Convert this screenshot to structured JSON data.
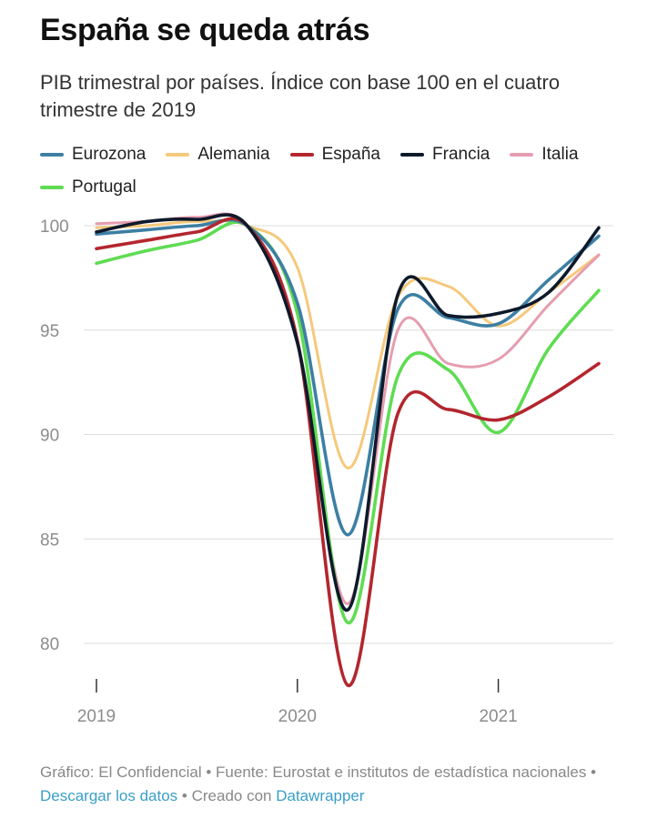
{
  "header": {
    "title": "España se queda atrás",
    "subtitle": "PIB trimestral por países. Índice con base 100 en el cuatro trimestre de 2019"
  },
  "footer": {
    "grafico": "Gráfico: El Confidencial",
    "sep1": " • ",
    "fuente": "Fuente: Eurostat e institutos de estadística nacionales",
    "sep2": " • ",
    "descargar": "Descargar los datos",
    "sep3": " • ",
    "creado": "Creado con ",
    "datawrapper": "Datawrapper"
  },
  "colors": {
    "Eurozona": "#3d7fa3",
    "Alemania": "#f5c97b",
    "España": "#b3262e",
    "Francia": "#0e1a2b",
    "Italia": "#e59db0",
    "Portugal": "#5fdc52",
    "grid": "#dcdcdc",
    "axis_text": "#8c8c8c"
  },
  "chart_data": {
    "type": "line",
    "title": "España se queda atrás",
    "subtitle": "PIB trimestral por países. Índice con base 100 en el cuatro trimestre de 2019",
    "x": [
      "2019-Q1",
      "2019-Q2",
      "2019-Q3",
      "2019-Q4",
      "2020-Q1",
      "2020-Q2",
      "2020-Q3",
      "2020-Q4",
      "2021-Q1",
      "2021-Q2",
      "2021-Q3"
    ],
    "x_ticks": [
      "2019",
      "2020",
      "2021"
    ],
    "y_ticks": [
      80,
      85,
      90,
      95,
      100
    ],
    "ylim": [
      78,
      100.5
    ],
    "grid": true,
    "legend_position": "top",
    "series": [
      {
        "name": "Eurozona",
        "values": [
          99.6,
          99.8,
          100.0,
          100.0,
          96.3,
          85.2,
          96.0,
          95.6,
          95.3,
          97.4,
          99.5
        ]
      },
      {
        "name": "Alemania",
        "values": [
          99.9,
          100.0,
          100.2,
          100.0,
          98.0,
          88.4,
          96.6,
          97.1,
          95.2,
          96.8,
          98.6
        ]
      },
      {
        "name": "España",
        "values": [
          98.9,
          99.3,
          99.7,
          100.0,
          94.5,
          78.0,
          91.0,
          91.2,
          90.7,
          91.8,
          93.4
        ]
      },
      {
        "name": "Francia",
        "values": [
          99.7,
          100.2,
          100.3,
          100.0,
          94.4,
          81.6,
          96.7,
          95.7,
          95.8,
          96.8,
          99.9
        ]
      },
      {
        "name": "Italia",
        "values": [
          100.1,
          100.2,
          100.4,
          100.0,
          94.4,
          81.9,
          95.0,
          93.4,
          93.6,
          96.2,
          98.6
        ]
      },
      {
        "name": "Portugal",
        "values": [
          98.2,
          98.8,
          99.3,
          100.0,
          95.8,
          81.0,
          92.8,
          93.1,
          90.1,
          94.1,
          96.9
        ]
      }
    ]
  }
}
